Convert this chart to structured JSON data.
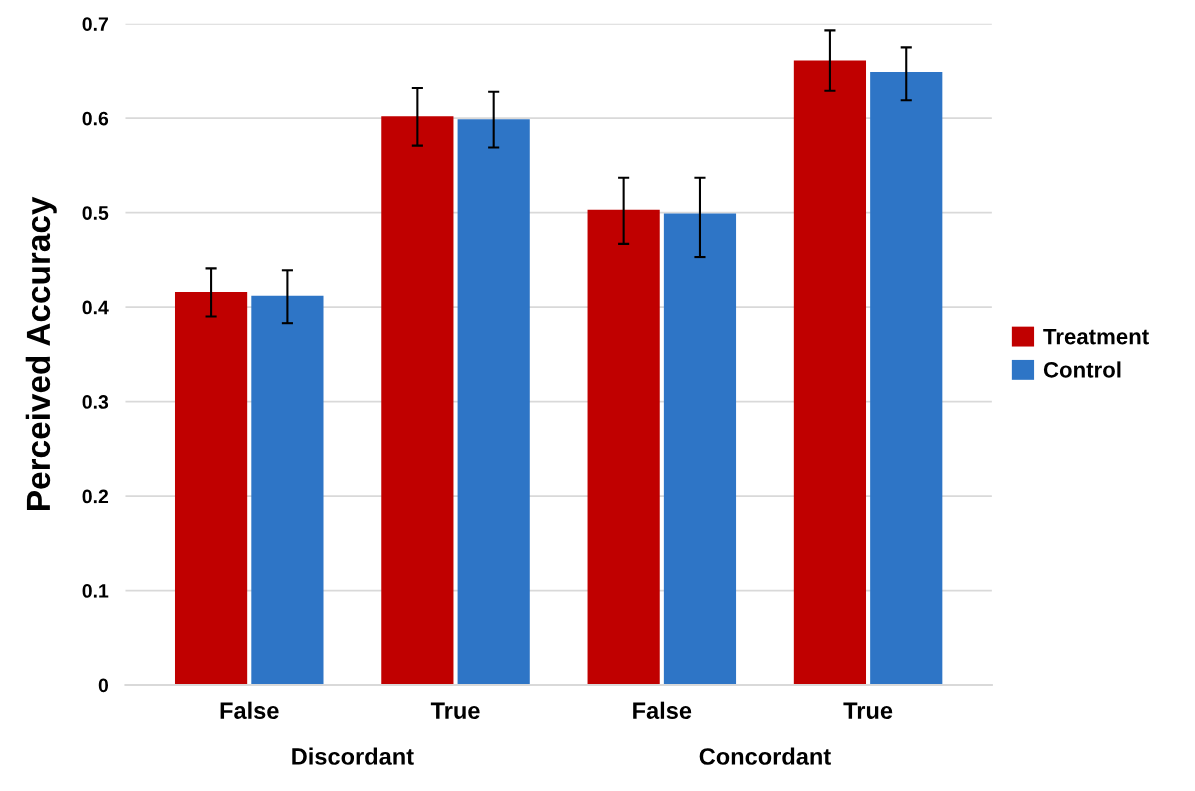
{
  "chart_data": {
    "type": "bar",
    "ylabel": "Perceived Accuracy",
    "categories": [
      "False",
      "True",
      "False",
      "True"
    ],
    "annotations": [
      "Discordant",
      "Concordant"
    ],
    "series": [
      {
        "name": "Treatment",
        "color": "#c00000",
        "values": [
          0.416,
          0.602,
          0.503,
          0.661
        ],
        "errors": [
          [
            0.39,
            0.441
          ],
          [
            0.571,
            0.632
          ],
          [
            0.467,
            0.537
          ],
          [
            0.629,
            0.693
          ]
        ]
      },
      {
        "name": "Control",
        "color": "#2e75c6",
        "values": [
          0.412,
          0.599,
          0.499,
          0.649
        ],
        "errors": [
          [
            0.383,
            0.439
          ],
          [
            0.569,
            0.628
          ],
          [
            0.453,
            0.537
          ],
          [
            0.619,
            0.675
          ]
        ]
      }
    ],
    "ylim": [
      0,
      0.7
    ],
    "yticks": [
      {
        "value": 0,
        "label": "0"
      },
      0.1,
      0.2,
      0.3,
      0.4,
      0.5,
      0.6,
      0.7
    ],
    "grid": "y",
    "legend": "right"
  }
}
